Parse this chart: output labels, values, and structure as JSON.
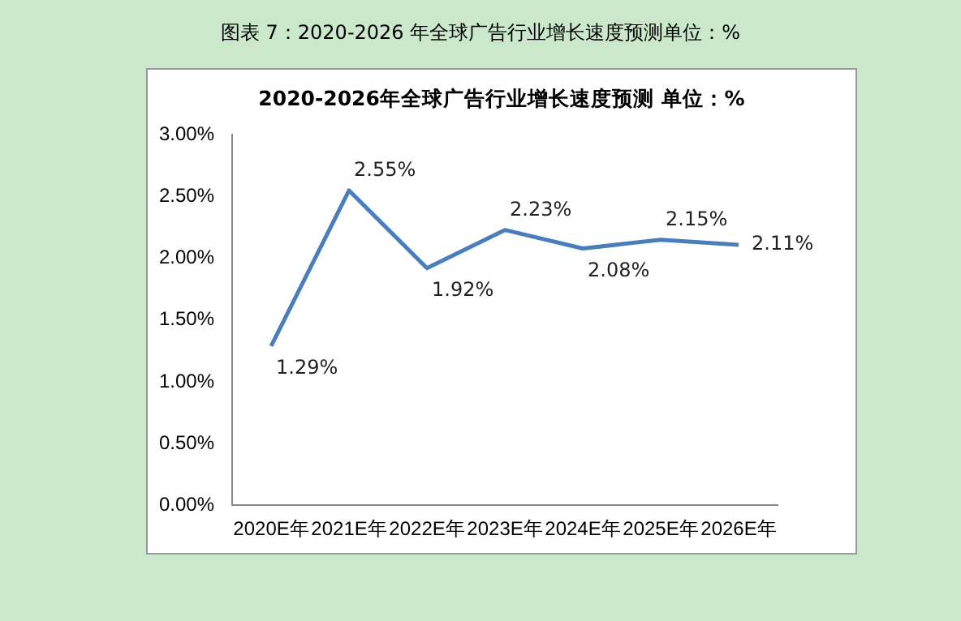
{
  "chart_data": {
    "type": "line",
    "title": "图表 7：2020-2026 年全球广告行业增长速度预测单位：%",
    "subtitle": "2020-2026年全球广告行业增长速度预测 单位：%",
    "categories": [
      "2020E年",
      "2021E年",
      "2022E年",
      "2023E年",
      "2024E年",
      "2025E年",
      "2026E年"
    ],
    "series": [
      {
        "color": "#4a7ebb",
        "values": [
          1.29,
          2.55,
          1.92,
          2.23,
          2.08,
          2.15,
          2.11
        ],
        "value_labels": [
          "1.29%",
          "2.55%",
          "1.92%",
          "2.23%",
          "2.08%",
          "2.15%",
          "2.11%"
        ]
      }
    ],
    "ylim": [
      0,
      3
    ],
    "yticks": [
      {
        "value": 0,
        "label": "0.00%"
      },
      {
        "value": 0.5,
        "label": "0.50%"
      },
      {
        "value": 1,
        "label": "1.00%"
      },
      {
        "value": 1.5,
        "label": "1.50%"
      },
      {
        "value": 2,
        "label": "2.00%"
      },
      {
        "value": 2.5,
        "label": "2.50%"
      },
      {
        "value": 3,
        "label": "3.00%"
      }
    ],
    "grid": false,
    "legend": false,
    "marker": "none",
    "line_style": "solid"
  }
}
